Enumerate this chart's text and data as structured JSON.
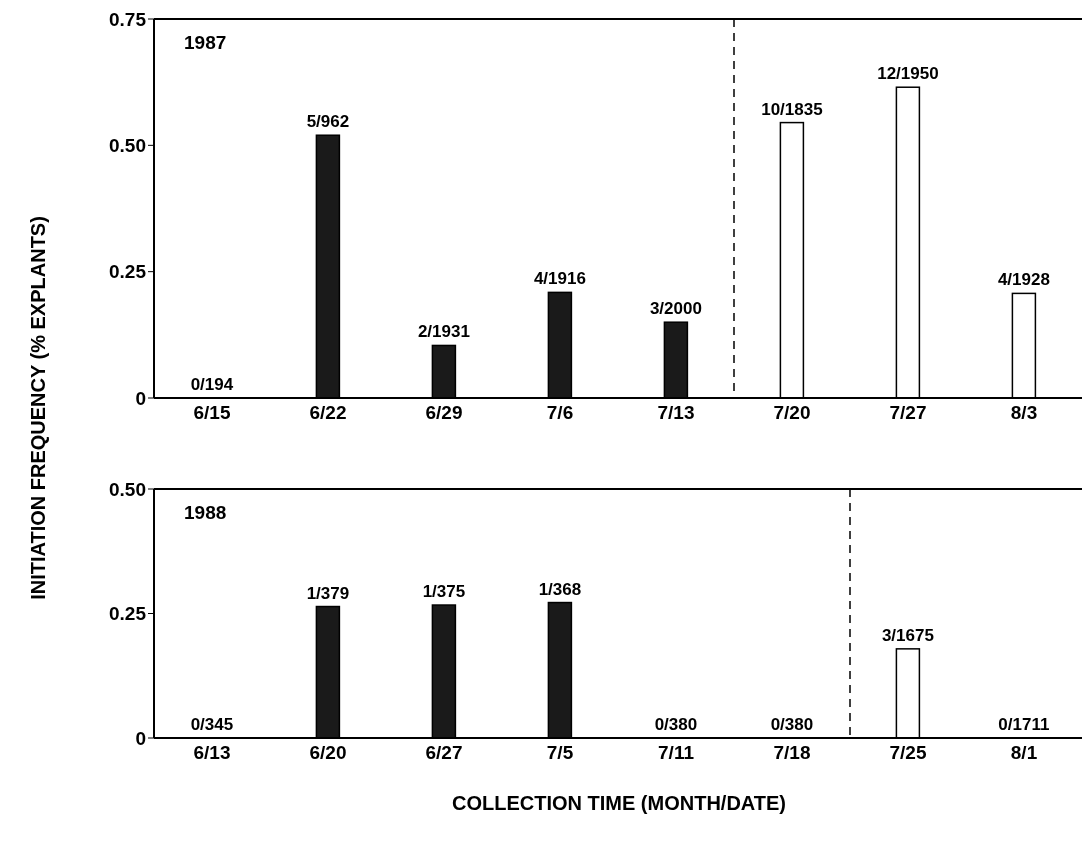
{
  "chart_data": [
    {
      "type": "bar",
      "ylabel": "INITIATION FREQUENCY (% EXPLANTS)",
      "annotations": [
        "1987"
      ],
      "categories": [
        "6/15",
        "6/22",
        "6/29",
        "7/6",
        "7/13",
        "7/20",
        "7/27",
        "8/3"
      ],
      "values": [
        0,
        0.52,
        0.104,
        0.209,
        0.15,
        0.545,
        0.615,
        0.207
      ],
      "colors": [
        "#1a1a1a",
        "#1a1a1a",
        "#1a1a1a",
        "#1a1a1a",
        "#1a1a1a",
        "#ffffff",
        "#ffffff",
        "#ffffff"
      ],
      "value_labels": [
        "0/194",
        "5/962",
        "2/1931",
        "4/1916",
        "3/2000",
        "10/1835",
        "12/1950",
        "4/1928"
      ],
      "ylim": [
        0,
        0.75
      ],
      "yticks": [
        {
          "value": 0,
          "label": "0"
        },
        {
          "value": 0.25,
          "label": "0.25"
        },
        {
          "value": 0.5,
          "label": "0.50"
        },
        {
          "value": 0.75,
          "label": "0.75"
        }
      ],
      "grid": false,
      "legend": false
    },
    {
      "type": "bar",
      "xlabel": "COLLECTION TIME (MONTH/DATE)",
      "annotations": [
        "1988"
      ],
      "categories": [
        "6/13",
        "6/20",
        "6/27",
        "7/5",
        "7/11",
        "7/18",
        "7/25",
        "8/1"
      ],
      "values": [
        0,
        0.264,
        0.267,
        0.272,
        0,
        0,
        0.179,
        0
      ],
      "colors": [
        "#1a1a1a",
        "#1a1a1a",
        "#1a1a1a",
        "#1a1a1a",
        "#1a1a1a",
        "#1a1a1a",
        "#ffffff",
        "#ffffff"
      ],
      "value_labels": [
        "0/345",
        "1/379",
        "1/375",
        "1/368",
        "0/380",
        "0/380",
        "3/1675",
        "0/1711"
      ],
      "ylim": [
        0,
        0.5
      ],
      "yticks": [
        {
          "value": 0,
          "label": "0"
        },
        {
          "value": 0.25,
          "label": "0.25"
        },
        {
          "value": 0.5,
          "label": "0.50"
        }
      ],
      "grid": false,
      "legend": false
    }
  ]
}
